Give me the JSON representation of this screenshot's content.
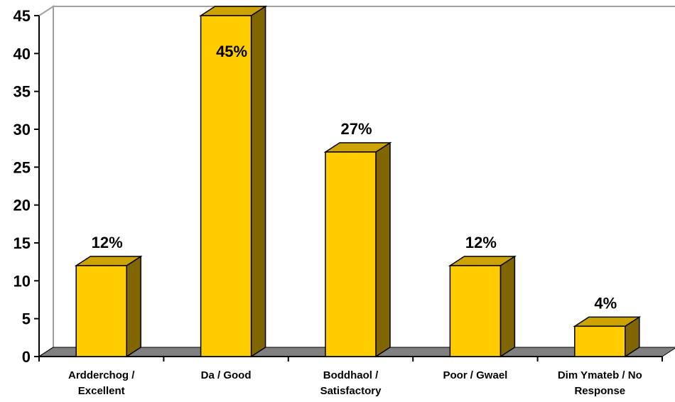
{
  "chart_data": {
    "type": "bar",
    "categories": [
      [
        "Ardderchog /",
        "Excellent"
      ],
      [
        "Da / Good"
      ],
      [
        "Boddhaol /",
        "Satisfactory"
      ],
      [
        "Poor / Gwael"
      ],
      [
        "Dim Ymateb / No",
        "Response"
      ]
    ],
    "values": [
      12,
      45,
      27,
      12,
      4
    ],
    "data_labels": [
      "12%",
      "45%",
      "27%",
      "12%",
      "4%"
    ],
    "y_ticks": [
      "0",
      "5",
      "10",
      "15",
      "20",
      "25",
      "30",
      "35",
      "40",
      "45"
    ],
    "ylim": [
      0,
      45
    ],
    "style": "3d-column",
    "grid": false,
    "legend": "none",
    "colors": {
      "bar_front": "#FFCC00",
      "bar_side": "#806600",
      "bar_top": "#CCA300",
      "floor": "#808080",
      "wall": "#FFFFFF",
      "wall_edge": "#A0A0A0"
    }
  }
}
